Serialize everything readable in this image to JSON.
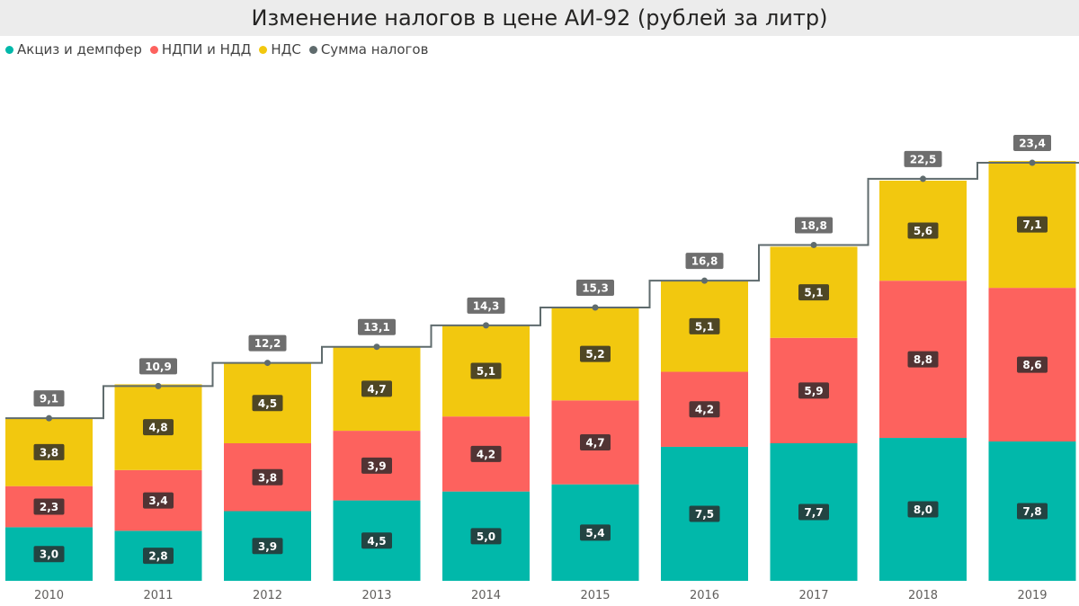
{
  "chart_data": {
    "type": "bar",
    "stacked": true,
    "title": "Изменение налогов в цене АИ-92 (рублей за литр)",
    "categories": [
      "2010",
      "2011",
      "2012",
      "2013",
      "2014",
      "2015",
      "2016",
      "2017",
      "2018",
      "2019"
    ],
    "series": [
      {
        "name": "Акциз и демпфер",
        "color": "#01B8AA",
        "values": [
          3.0,
          2.8,
          3.9,
          4.5,
          5.0,
          5.4,
          7.5,
          7.7,
          8.0,
          7.8
        ],
        "labels": [
          "3,0",
          "2,8",
          "3,9",
          "4,5",
          "5,0",
          "5,4",
          "7,5",
          "7,7",
          "8,0",
          "7,8"
        ]
      },
      {
        "name": "НДПИ и НДД",
        "color": "#FD625E",
        "values": [
          2.3,
          3.4,
          3.8,
          3.9,
          4.2,
          4.7,
          4.2,
          5.9,
          8.8,
          8.6
        ],
        "labels": [
          "2,3",
          "3,4",
          "3,8",
          "3,9",
          "4,2",
          "4,7",
          "4,2",
          "5,9",
          "8,8",
          "8,6"
        ]
      },
      {
        "name": "НДС",
        "color": "#F2C80F",
        "values": [
          3.8,
          4.8,
          4.5,
          4.7,
          5.1,
          5.2,
          5.1,
          5.1,
          5.6,
          7.1
        ],
        "labels": [
          "3,8",
          "4,8",
          "4,5",
          "4,7",
          "5,1",
          "5,2",
          "5,1",
          "5,1",
          "5,6",
          "7,1"
        ]
      }
    ],
    "totals": {
      "name": "Сумма налогов",
      "color": "#5F6B6D",
      "type": "step-line",
      "values": [
        9.1,
        10.9,
        12.2,
        13.1,
        14.3,
        15.3,
        16.8,
        18.8,
        22.5,
        23.4
      ],
      "labels": [
        "9,1",
        "10,9",
        "12,2",
        "13,1",
        "14,3",
        "15,3",
        "16,8",
        "18,8",
        "22,5",
        "23,4"
      ]
    },
    "ylim": [
      0,
      23.4
    ],
    "legend_position": "top-left",
    "grid": false
  }
}
